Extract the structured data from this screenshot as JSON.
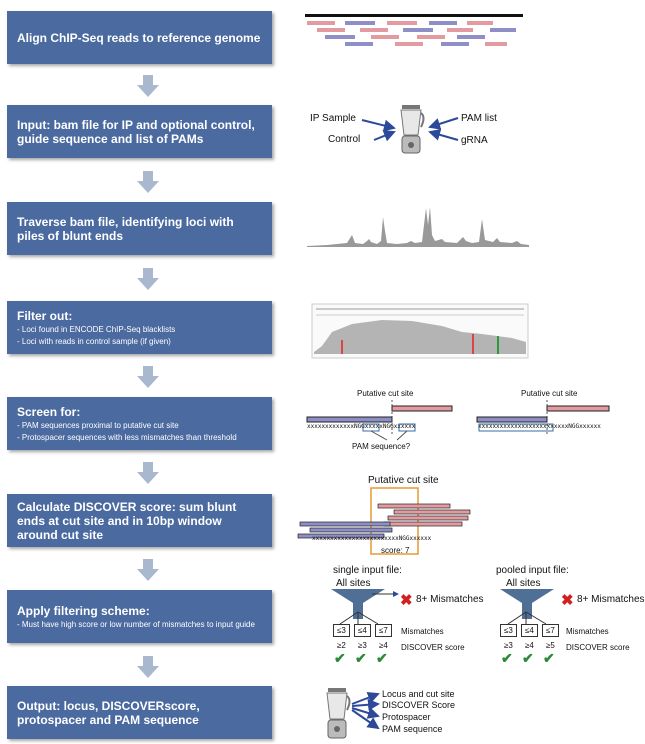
{
  "steps": [
    {
      "title": "Align ChIP-Seq reads to reference genome",
      "sub": []
    },
    {
      "title": "Input: bam file for IP and optional control, guide sequence and list of PAMs",
      "sub": []
    },
    {
      "title": "Traverse bam file, identifying loci with piles of blunt ends",
      "sub": []
    },
    {
      "title": "Filter out:",
      "sub": [
        "- Loci found in ENCODE ChIP-Seq blacklists",
        "- Loci with reads in control sample (if given)"
      ]
    },
    {
      "title": "Screen for:",
      "sub": [
        "- PAM sequences proximal to putative cut site",
        "- Protospacer sequences with less mismatches than threshold"
      ]
    },
    {
      "title": "Calculate DISCOVER score: sum blunt ends at cut site and in 10bp window around cut site",
      "sub": []
    },
    {
      "title": "Apply filtering scheme:",
      "sub": [
        "- Must have high score or low number of mismatches to input guide"
      ]
    },
    {
      "title": "Output: locus, DISCOVERscore,  protospacer and PAM sequence",
      "sub": []
    }
  ],
  "input_panel": {
    "ip_sample": "IP Sample",
    "control": "Control",
    "pam_list": "PAM list",
    "grna": "gRNA"
  },
  "screen_panel": {
    "putative_cut_site": "Putative cut site",
    "putative_cut_site_2": "Putative cut site",
    "pam_question": "PAM sequence?",
    "seq1": "xxxxxxxxxxxxxNGGxxxxxNGGxxxxxx",
    "seq2": "xxxxxxxxxxxxxxxxxxxxxxxxxNGGxxxxxx"
  },
  "score_panel": {
    "putative_cut_site": "Putative cut site",
    "seq": "xxxxxxxxxxxxxxxxxxxxxxxxNGGxxxxxx",
    "score": "score: 7"
  },
  "filter_panel": {
    "single": {
      "title": "single input file:",
      "all_sites": "All sites",
      "excluded": "8+ Mismatches",
      "mismatches": [
        "≤3",
        "≤4",
        "≤7"
      ],
      "scores": [
        "≥2",
        "≥3",
        "≥4"
      ],
      "mismatches_label": "Mismatches",
      "score_label": "DISCOVER score"
    },
    "pooled": {
      "title": "pooled input file:",
      "all_sites": "All sites",
      "excluded": "8+ Mismatches",
      "mismatches": [
        "≤3",
        "≤4",
        "≤7"
      ],
      "scores": [
        "≥3",
        "≥4",
        "≥5"
      ],
      "mismatches_label": "Mismatches",
      "score_label": "DISCOVER score"
    }
  },
  "output_panel": {
    "items": [
      "Locus and cut site",
      "DISCOVER Score",
      "Protospacer",
      "PAM sequence"
    ]
  },
  "colors": {
    "step_box": "#4a6aa0",
    "arrow": "#a9b7cf",
    "read_pink": "#e39aa0",
    "read_blue": "#8f8fc8",
    "funnel": "#4f6f96",
    "check": "#2a8a3a",
    "cross": "#d21f1f",
    "score_box": "#e69a35"
  }
}
